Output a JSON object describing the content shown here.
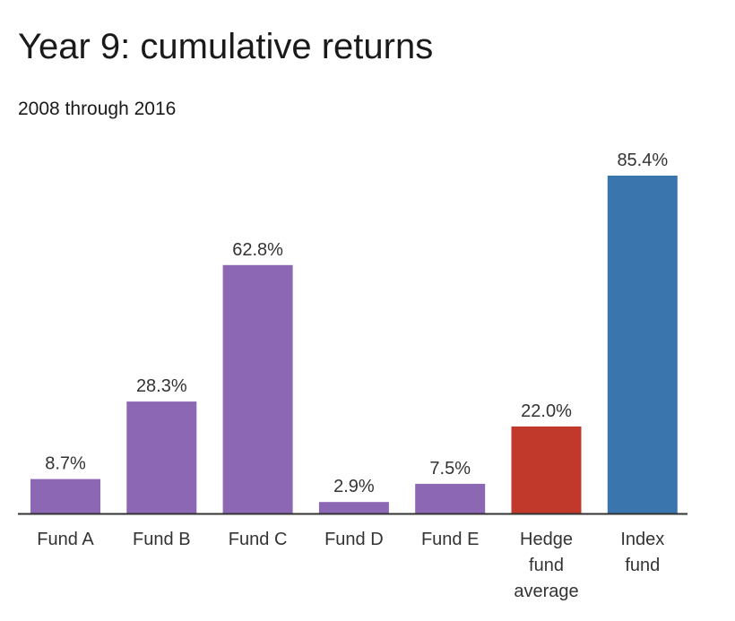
{
  "chart_data": {
    "type": "bar",
    "title": "Year 9: cumulative returns",
    "subtitle": "2008 through 2016",
    "xlabel": "",
    "ylabel": "",
    "categories": [
      [
        "Fund A"
      ],
      [
        "Fund B"
      ],
      [
        "Fund C"
      ],
      [
        "Fund D"
      ],
      [
        "Fund E"
      ],
      [
        "Hedge",
        "fund",
        "average"
      ],
      [
        "Index",
        "fund"
      ]
    ],
    "values": [
      8.7,
      28.3,
      62.8,
      2.9,
      7.5,
      22.0,
      85.4
    ],
    "value_labels": [
      "8.7%",
      "28.3%",
      "62.8%",
      "2.9%",
      "7.5%",
      "22.0%",
      "85.4%"
    ],
    "bar_colors": [
      "#8c67b3",
      "#8c67b3",
      "#8c67b3",
      "#8c67b3",
      "#8c67b3",
      "#c0392b",
      "#3a75ae"
    ],
    "ylim": [
      0,
      85.4
    ],
    "grid": false,
    "legend": "none"
  },
  "colors": {
    "axis": "#333333",
    "label_text": "#333333"
  }
}
